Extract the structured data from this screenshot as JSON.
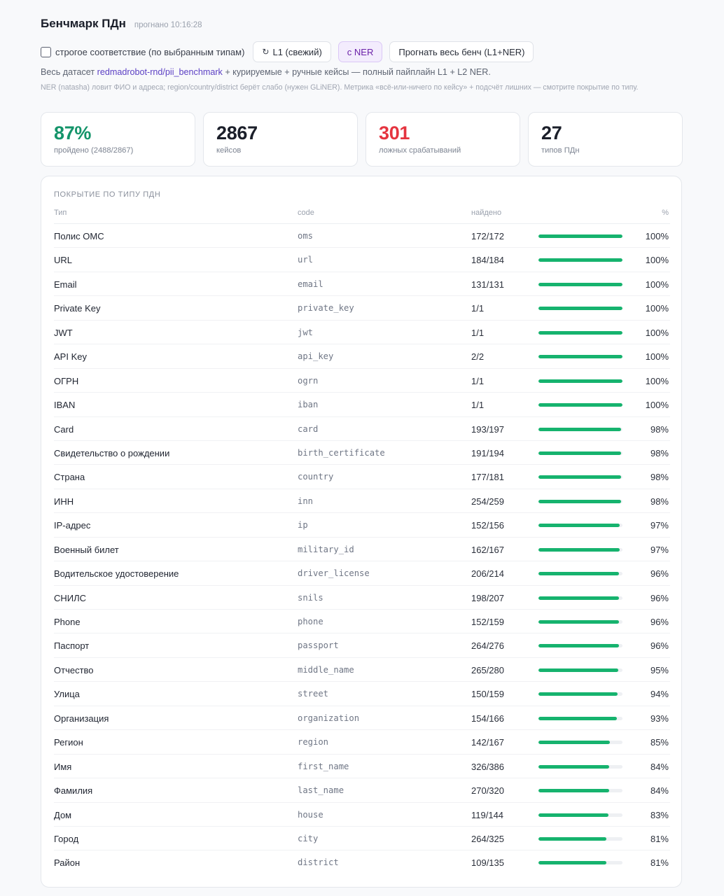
{
  "header": {
    "title": "Бенчмарк ПДн",
    "run_time": "прогнано 10:16:28"
  },
  "controls": {
    "strict_label": "строгое соответствие (по выбранным типам)",
    "btn_l1": "L1 (свежий)",
    "btn_ner": "с NER",
    "btn_full": "Прогнать весь бенч (L1+NER)"
  },
  "description": {
    "prefix": "Весь датасет",
    "link": "redmadrobot-rnd/pii_benchmark",
    "suffix": "+ курируемые + ручные кейсы — полный пайплайн L1 + L2 NER.",
    "note": "NER (natasha) ловит ФИО и адреса; region/country/district берёт слабо (нужен GLiNER). Метрика «всё-или-ничего по кейсу» + подсчёт лишних — смотрите покрытие по типу."
  },
  "stats": [
    {
      "value": "87%",
      "label": "пройдено (2488/2867)",
      "color": "#14946a"
    },
    {
      "value": "2867",
      "label": "кейсов",
      "color": "#1b1f2a"
    },
    {
      "value": "301",
      "label": "ложных срабатываний",
      "color": "#e5343f"
    },
    {
      "value": "27",
      "label": "типов ПДн",
      "color": "#1b1f2a"
    }
  ],
  "coverage": {
    "title": "Покрытие по типу ПДн",
    "columns": {
      "type": "Тип",
      "code": "code",
      "found": "найдено",
      "pct": "%"
    },
    "rows": [
      {
        "type": "Полис ОМС",
        "code": "oms",
        "found": "172/172",
        "pct": "100%",
        "ratio": 1.0
      },
      {
        "type": "URL",
        "code": "url",
        "found": "184/184",
        "pct": "100%",
        "ratio": 1.0
      },
      {
        "type": "Email",
        "code": "email",
        "found": "131/131",
        "pct": "100%",
        "ratio": 1.0
      },
      {
        "type": "Private Key",
        "code": "private_key",
        "found": "1/1",
        "pct": "100%",
        "ratio": 1.0
      },
      {
        "type": "JWT",
        "code": "jwt",
        "found": "1/1",
        "pct": "100%",
        "ratio": 1.0
      },
      {
        "type": "API Key",
        "code": "api_key",
        "found": "2/2",
        "pct": "100%",
        "ratio": 1.0
      },
      {
        "type": "ОГРН",
        "code": "ogrn",
        "found": "1/1",
        "pct": "100%",
        "ratio": 1.0
      },
      {
        "type": "IBAN",
        "code": "iban",
        "found": "1/1",
        "pct": "100%",
        "ratio": 1.0
      },
      {
        "type": "Card",
        "code": "card",
        "found": "193/197",
        "pct": "98%",
        "ratio": 0.98
      },
      {
        "type": "Свидетельство о рождении",
        "code": "birth_certificate",
        "found": "191/194",
        "pct": "98%",
        "ratio": 0.98
      },
      {
        "type": "Страна",
        "code": "country",
        "found": "177/181",
        "pct": "98%",
        "ratio": 0.98
      },
      {
        "type": "ИНН",
        "code": "inn",
        "found": "254/259",
        "pct": "98%",
        "ratio": 0.98
      },
      {
        "type": "IP-адрес",
        "code": "ip",
        "found": "152/156",
        "pct": "97%",
        "ratio": 0.97
      },
      {
        "type": "Военный билет",
        "code": "military_id",
        "found": "162/167",
        "pct": "97%",
        "ratio": 0.97
      },
      {
        "type": "Водительское удостоверение",
        "code": "driver_license",
        "found": "206/214",
        "pct": "96%",
        "ratio": 0.96
      },
      {
        "type": "СНИЛС",
        "code": "snils",
        "found": "198/207",
        "pct": "96%",
        "ratio": 0.96
      },
      {
        "type": "Phone",
        "code": "phone",
        "found": "152/159",
        "pct": "96%",
        "ratio": 0.96
      },
      {
        "type": "Паспорт",
        "code": "passport",
        "found": "264/276",
        "pct": "96%",
        "ratio": 0.96
      },
      {
        "type": "Отчество",
        "code": "middle_name",
        "found": "265/280",
        "pct": "95%",
        "ratio": 0.95
      },
      {
        "type": "Улица",
        "code": "street",
        "found": "150/159",
        "pct": "94%",
        "ratio": 0.94
      },
      {
        "type": "Организация",
        "code": "organization",
        "found": "154/166",
        "pct": "93%",
        "ratio": 0.93
      },
      {
        "type": "Регион",
        "code": "region",
        "found": "142/167",
        "pct": "85%",
        "ratio": 0.85
      },
      {
        "type": "Имя",
        "code": "first_name",
        "found": "326/386",
        "pct": "84%",
        "ratio": 0.84
      },
      {
        "type": "Фамилия",
        "code": "last_name",
        "found": "270/320",
        "pct": "84%",
        "ratio": 0.84
      },
      {
        "type": "Дом",
        "code": "house",
        "found": "119/144",
        "pct": "83%",
        "ratio": 0.83
      },
      {
        "type": "Город",
        "code": "city",
        "found": "264/325",
        "pct": "81%",
        "ratio": 0.81
      },
      {
        "type": "Район",
        "code": "district",
        "found": "109/135",
        "pct": "81%",
        "ratio": 0.81
      }
    ]
  },
  "colors": {
    "bar_fill": "#16b36e",
    "bar_track": "#eef0f3",
    "link": "#5b3fc4",
    "accent_purple": "#6b21a8"
  }
}
